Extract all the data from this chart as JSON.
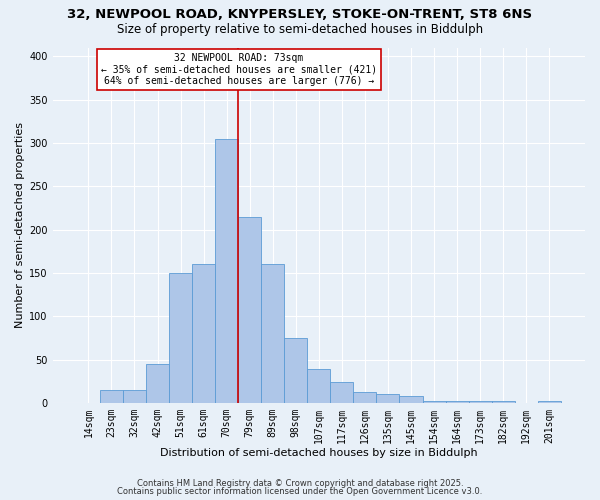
{
  "title1": "32, NEWPOOL ROAD, KNYPERSLEY, STOKE-ON-TRENT, ST8 6NS",
  "title2": "Size of property relative to semi-detached houses in Biddulph",
  "xlabel": "Distribution of semi-detached houses by size in Biddulph",
  "ylabel": "Number of semi-detached properties",
  "bar_labels": [
    "14sqm",
    "23sqm",
    "32sqm",
    "42sqm",
    "51sqm",
    "61sqm",
    "70sqm",
    "79sqm",
    "89sqm",
    "98sqm",
    "107sqm",
    "117sqm",
    "126sqm",
    "135sqm",
    "145sqm",
    "154sqm",
    "164sqm",
    "173sqm",
    "182sqm",
    "192sqm",
    "201sqm"
  ],
  "bar_values": [
    0,
    15,
    15,
    45,
    150,
    160,
    305,
    215,
    160,
    75,
    40,
    25,
    13,
    11,
    8,
    2,
    2,
    2,
    2,
    0,
    2
  ],
  "bar_color": "#aec6e8",
  "bar_edge_color": "#5b9bd5",
  "vline_color": "#cc0000",
  "annotation_title": "32 NEWPOOL ROAD: 73sqm",
  "annotation_line1": "← 35% of semi-detached houses are smaller (421)",
  "annotation_line2": "64% of semi-detached houses are larger (776) →",
  "annotation_box_color": "#ffffff",
  "annotation_box_edge": "#cc0000",
  "ylim": [
    0,
    410
  ],
  "yticks": [
    0,
    50,
    100,
    150,
    200,
    250,
    300,
    350,
    400
  ],
  "footnote1": "Contains HM Land Registry data © Crown copyright and database right 2025.",
  "footnote2": "Contains public sector information licensed under the Open Government Licence v3.0.",
  "bg_color": "#e8f0f8",
  "title_fontsize": 9.5,
  "subtitle_fontsize": 8.5,
  "tick_fontsize": 7,
  "axis_label_fontsize": 8,
  "annotation_fontsize": 7,
  "footnote_fontsize": 6
}
